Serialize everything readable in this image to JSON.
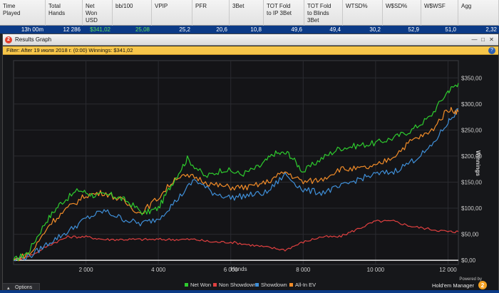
{
  "header": {
    "columns": [
      {
        "label": "Time\nPlayed"
      },
      {
        "label": "Total\nHands"
      },
      {
        "label": "Net\nWon\nUSD"
      },
      {
        "label": "bb/100"
      },
      {
        "label": "VPIP"
      },
      {
        "label": "PFR"
      },
      {
        "label": "3Bet"
      },
      {
        "label": "TOT Fold\nto IP 3Bet"
      },
      {
        "label": "TOT Fold\nto Blinds\n3Bet"
      },
      {
        "label": "WTSD%"
      },
      {
        "label": "W$SD%"
      },
      {
        "label": "W$WSF"
      },
      {
        "label": "Agg"
      }
    ],
    "values": [
      "13h 00m",
      "12 286",
      "$341,02",
      "25,08",
      "25,2",
      "20,6",
      "10,8",
      "49,6",
      "49,4",
      "30,2",
      "52,9",
      "51,0",
      "2,32"
    ]
  },
  "window": {
    "title": "Results Graph",
    "app_icon": "2",
    "filter_text": "Filter: After 19 июля 2018 г. (0:00) Winnings: $341,02",
    "options_label": "Options",
    "powered_by": "Powered by",
    "brand": "Hold'em Manager",
    "brand_logo": "2"
  },
  "chart_data": {
    "type": "line",
    "xlabel": "Hands",
    "ylabel": "Winnings",
    "xlim": [
      0,
      12286
    ],
    "ylim": [
      0,
      350
    ],
    "x_ticks": [
      2000,
      4000,
      6000,
      8000,
      10000,
      12000
    ],
    "x_tick_labels": [
      "2 000",
      "4 000",
      "6 000",
      "8 000",
      "10 000",
      "12 000"
    ],
    "y_ticks": [
      0,
      50,
      100,
      150,
      200,
      250,
      300,
      350
    ],
    "y_tick_labels": [
      "$0,00",
      "$50,00",
      "$100,00",
      "$150,00",
      "$200,00",
      "$250,00",
      "$300,00",
      "$350,00"
    ],
    "grid": true,
    "legend_position": "bottom-center",
    "series": [
      {
        "name": "Net Won",
        "color": "#2ecc2e",
        "x": [
          0,
          400,
          900,
          1300,
          1800,
          2200,
          2700,
          3100,
          3600,
          4000,
          4400,
          4800,
          5300,
          5800,
          6300,
          6800,
          7200,
          7600,
          8000,
          8500,
          9000,
          9500,
          10000,
          10500,
          11000,
          11500,
          12000,
          12286
        ],
        "y": [
          0,
          15,
          75,
          110,
          135,
          125,
          125,
          115,
          90,
          100,
          150,
          195,
          160,
          175,
          165,
          180,
          205,
          205,
          170,
          195,
          215,
          220,
          225,
          235,
          250,
          275,
          325,
          340
        ]
      },
      {
        "name": "Non Showdown",
        "color": "#e04040",
        "x": [
          0,
          500,
          1000,
          1500,
          2000,
          2500,
          3000,
          3500,
          4000,
          4500,
          5000,
          5500,
          6000,
          6500,
          7000,
          7500,
          8000,
          8500,
          9000,
          9500,
          10000,
          10500,
          11000,
          11500,
          12000,
          12286
        ],
        "y": [
          0,
          10,
          30,
          45,
          45,
          40,
          40,
          40,
          40,
          40,
          40,
          35,
          35,
          30,
          25,
          20,
          35,
          45,
          45,
          60,
          75,
          75,
          65,
          60,
          55,
          55
        ]
      },
      {
        "name": "Showdown",
        "color": "#3f8fd8",
        "x": [
          0,
          500,
          1000,
          1500,
          2000,
          2500,
          3000,
          3500,
          4000,
          4500,
          5000,
          5500,
          6000,
          6500,
          7000,
          7500,
          8000,
          8500,
          9000,
          9500,
          10000,
          10500,
          11000,
          11500,
          12000,
          12286
        ],
        "y": [
          0,
          10,
          35,
          55,
          80,
          95,
          80,
          70,
          80,
          115,
          155,
          130,
          120,
          125,
          130,
          165,
          135,
          130,
          140,
          155,
          165,
          170,
          190,
          215,
          265,
          290
        ]
      },
      {
        "name": "All-In EV",
        "color": "#f28c28",
        "x": [
          0,
          500,
          1000,
          1500,
          2000,
          2500,
          3000,
          3500,
          4000,
          4500,
          5000,
          5500,
          6000,
          6500,
          7000,
          7500,
          8000,
          8500,
          9000,
          9500,
          10000,
          10500,
          11000,
          11500,
          12000,
          12286
        ],
        "y": [
          0,
          15,
          70,
          100,
          125,
          130,
          115,
          90,
          120,
          160,
          160,
          145,
          140,
          140,
          150,
          170,
          150,
          155,
          175,
          175,
          180,
          200,
          230,
          245,
          290,
          285
        ]
      }
    ]
  }
}
